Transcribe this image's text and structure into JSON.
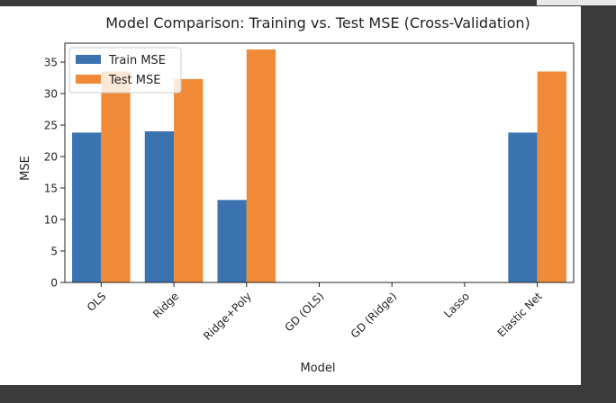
{
  "chart_data": {
    "type": "bar",
    "title": "Model Comparison: Training vs. Test MSE (Cross-Validation)",
    "xlabel": "Model",
    "ylabel": "MSE",
    "ylim": [
      0,
      38
    ],
    "yticks": [
      "0",
      "5",
      "10",
      "15",
      "20",
      "25",
      "30",
      "35"
    ],
    "categories": [
      "OLS",
      "Ridge",
      "Ridge+Poly",
      "GD (OLS)",
      "GD (Ridge)",
      "Lasso",
      "Elastic Net"
    ],
    "legend_position": "upper-left",
    "grid": false,
    "series": [
      {
        "name": "Train MSE",
        "color": "#3a73b0",
        "values": [
          23.8,
          24.0,
          13.1,
          null,
          null,
          null,
          23.8
        ]
      },
      {
        "name": "Test MSE",
        "color": "#f08a37",
        "values": [
          33.5,
          32.3,
          37.0,
          null,
          null,
          null,
          33.5
        ]
      }
    ]
  }
}
